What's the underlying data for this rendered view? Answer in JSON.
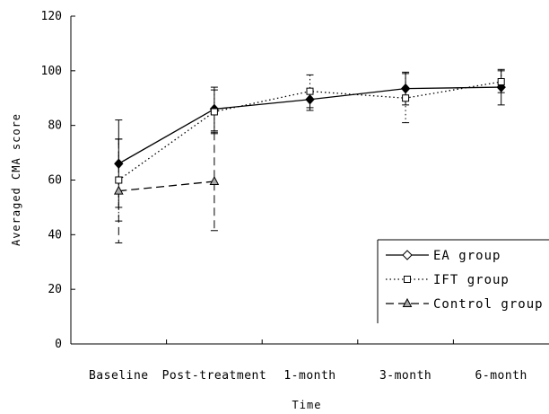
{
  "chart_data": {
    "type": "line",
    "title": "",
    "xlabel": "Time",
    "ylabel": "Averaged CMA score",
    "ylim": [
      0,
      120
    ],
    "yticks": [
      "0",
      "20",
      "40",
      "60",
      "80",
      "100",
      "120"
    ],
    "categories": [
      "Baseline",
      "Post-treatment",
      "1-month",
      "3-month",
      "6-month"
    ],
    "grid": false,
    "legend_position": "bottom-right",
    "series": [
      {
        "name": "EA group",
        "marker": "diamond",
        "line": "solid",
        "values": [
          66,
          86,
          89.5,
          93.5,
          94
        ],
        "error": [
          16,
          8,
          4,
          6,
          6.5
        ]
      },
      {
        "name": "IFT group",
        "marker": "square",
        "line": "dotted",
        "values": [
          60,
          85,
          92.5,
          90,
          96
        ],
        "error": [
          15,
          8,
          6,
          9,
          4
        ]
      },
      {
        "name": "Control group",
        "marker": "triangle",
        "line": "dashed",
        "values": [
          56,
          59.5,
          null,
          null,
          null
        ],
        "error": [
          19,
          18,
          null,
          null,
          null
        ]
      }
    ]
  }
}
